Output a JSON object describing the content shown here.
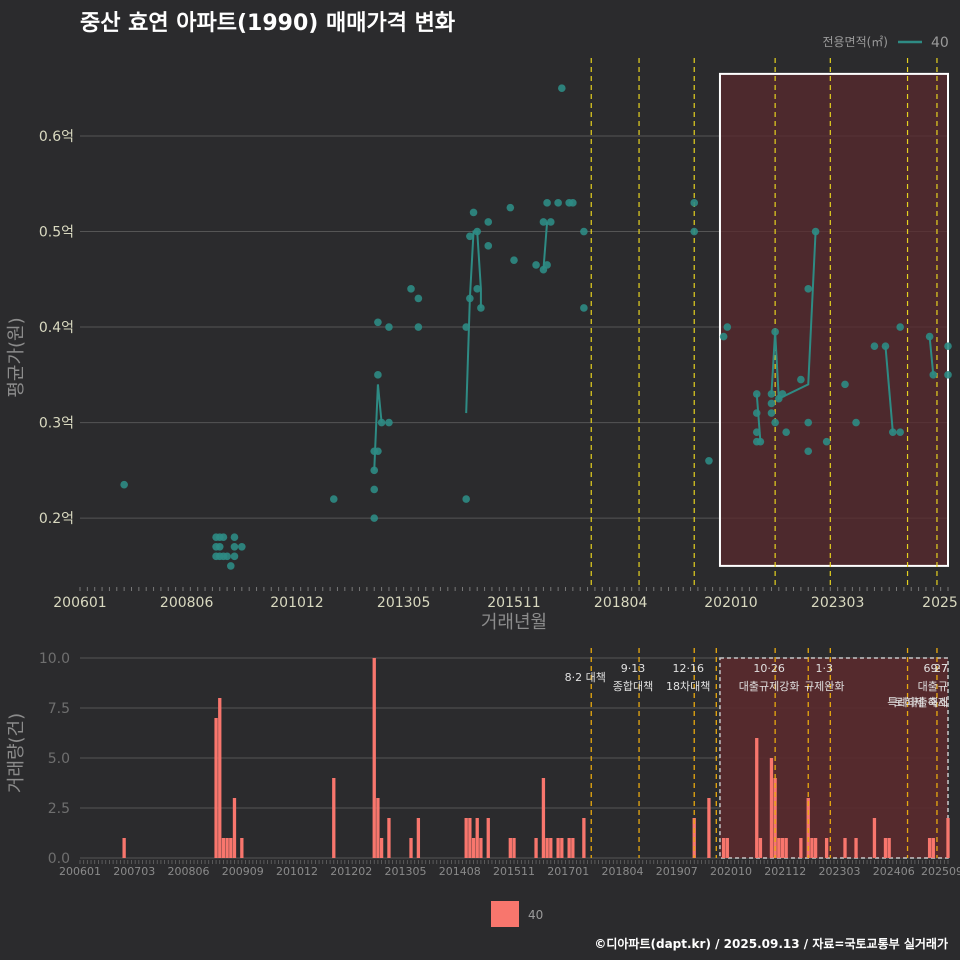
{
  "title": "중산 효연 아파트(1990) 매매가격 변화",
  "footer": "©디아파트(dapt.kr) / 2025.09.13 / 자료=국토교통부 실거래가",
  "colors": {
    "bg": "#2b2b2d",
    "line": "#2e8b84",
    "bar": "#f8766d",
    "grid": "#555555",
    "vline": "#e6d21f",
    "vline2": "#e8a90f",
    "shade": "#5a2a2e"
  },
  "chart_data": [
    {
      "type": "line",
      "name": "price",
      "xlabel": "거래년월",
      "ylabel": "평균가(원)",
      "legend_title": "전용면적(㎡)",
      "legend_position": "top-right",
      "x_range": [
        "2006-01",
        "2025-09"
      ],
      "ylim": [
        0.13,
        0.69
      ],
      "y_ticks": [
        0.2,
        0.3,
        0.4,
        0.5,
        0.6
      ],
      "y_tick_labels": [
        "0.2억",
        "0.3억",
        "0.4억",
        "0.5억",
        "0.6억"
      ],
      "x_ticks": [
        "2006-01",
        "2008-06",
        "2010-12",
        "2013-05",
        "2015-11",
        "2018-04",
        "2020-10",
        "2023-03",
        "2025-09"
      ],
      "x_tick_labels": [
        "200601",
        "200806",
        "201012",
        "201305",
        "201511",
        "201804",
        "202010",
        "202303",
        "2025"
      ],
      "vlines": [
        "2017-08",
        "2018-09",
        "2019-12",
        "2021-10",
        "2023-01",
        "2024-10",
        "2025-06"
      ],
      "highlight": [
        "2020-07",
        "2025-09"
      ],
      "series": [
        {
          "name": "40",
          "points": [
            [
              "2007-01",
              0.235
            ],
            [
              "2009-02",
              0.18
            ],
            [
              "2009-02",
              0.17
            ],
            [
              "2009-02",
              0.16
            ],
            [
              "2009-03",
              0.18
            ],
            [
              "2009-03",
              0.17
            ],
            [
              "2009-03",
              0.16
            ],
            [
              "2009-04",
              0.18
            ],
            [
              "2009-04",
              0.16
            ],
            [
              "2009-05",
              0.16
            ],
            [
              "2009-06",
              0.15
            ],
            [
              "2009-07",
              0.17
            ],
            [
              "2009-07",
              0.18
            ],
            [
              "2009-07",
              0.16
            ],
            [
              "2009-09",
              0.17
            ],
            [
              "2011-10",
              0.22
            ],
            [
              "2012-09",
              0.2
            ],
            [
              "2012-09",
              0.23
            ],
            [
              "2012-09",
              0.25
            ],
            [
              "2012-09",
              0.27
            ],
            [
              "2012-10",
              0.27
            ],
            [
              "2012-10",
              0.35
            ],
            [
              "2012-10",
              0.405
            ],
            [
              "2012-11",
              0.3
            ],
            [
              "2013-01",
              0.3
            ],
            [
              "2013-01",
              0.4
            ],
            [
              "2013-07",
              0.44
            ],
            [
              "2013-09",
              0.4
            ],
            [
              "2013-09",
              0.43
            ],
            [
              "2014-10",
              0.22
            ],
            [
              "2014-10",
              0.4
            ],
            [
              "2014-11",
              0.43
            ],
            [
              "2014-11",
              0.495
            ],
            [
              "2014-12",
              0.52
            ],
            [
              "2015-01",
              0.5
            ],
            [
              "2015-01",
              0.44
            ],
            [
              "2015-02",
              0.42
            ],
            [
              "2015-04",
              0.485
            ],
            [
              "2015-04",
              0.51
            ],
            [
              "2015-10",
              0.525
            ],
            [
              "2015-11",
              0.47
            ],
            [
              "2016-05",
              0.465
            ],
            [
              "2016-07",
              0.46
            ],
            [
              "2016-07",
              0.51
            ],
            [
              "2016-08",
              0.53
            ],
            [
              "2016-08",
              0.465
            ],
            [
              "2016-09",
              0.51
            ],
            [
              "2016-11",
              0.53
            ],
            [
              "2016-12",
              0.65
            ],
            [
              "2017-02",
              0.53
            ],
            [
              "2017-03",
              0.53
            ],
            [
              "2017-06",
              0.42
            ],
            [
              "2017-06",
              0.5
            ],
            [
              "2019-12",
              0.53
            ],
            [
              "2019-12",
              0.5
            ],
            [
              "2020-04",
              0.26
            ],
            [
              "2020-08",
              0.39
            ],
            [
              "2020-09",
              0.4
            ],
            [
              "2021-05",
              0.33
            ],
            [
              "2021-05",
              0.31
            ],
            [
              "2021-05",
              0.29
            ],
            [
              "2021-05",
              0.28
            ],
            [
              "2021-06",
              0.28
            ],
            [
              "2021-09",
              0.31
            ],
            [
              "2021-09",
              0.33
            ],
            [
              "2021-09",
              0.32
            ],
            [
              "2021-10",
              0.395
            ],
            [
              "2021-10",
              0.3
            ],
            [
              "2021-11",
              0.325
            ],
            [
              "2021-12",
              0.33
            ],
            [
              "2022-01",
              0.29
            ],
            [
              "2022-05",
              0.345
            ],
            [
              "2022-07",
              0.3
            ],
            [
              "2022-07",
              0.27
            ],
            [
              "2022-07",
              0.44
            ],
            [
              "2022-09",
              0.5
            ],
            [
              "2022-12",
              0.28
            ],
            [
              "2023-05",
              0.34
            ],
            [
              "2023-08",
              0.3
            ],
            [
              "2024-01",
              0.38
            ],
            [
              "2024-04",
              0.38
            ],
            [
              "2024-06",
              0.29
            ],
            [
              "2024-08",
              0.29
            ],
            [
              "2024-08",
              0.4
            ],
            [
              "2025-04",
              0.39
            ],
            [
              "2025-05",
              0.35
            ],
            [
              "2025-09",
              0.35
            ],
            [
              "2025-09",
              0.38
            ]
          ],
          "line": [
            [
              "2014-10",
              0.31
            ],
            [
              "2014-11",
              0.43
            ],
            [
              "2014-12",
              0.5
            ],
            [
              "2015-01",
              0.5
            ],
            [
              "2015-02",
              0.44
            ],
            [
              "2015-02",
              0.42
            ],
            [
              "2016-07",
              0.46
            ],
            [
              "2016-08",
              0.51
            ],
            [
              "2021-09",
              0.33
            ],
            [
              "2021-10",
              0.395
            ],
            [
              "2021-11",
              0.325
            ],
            [
              "2022-07",
              0.34
            ],
            [
              "2022-09",
              0.5
            ],
            [
              "2024-04",
              0.38
            ],
            [
              "2024-06",
              0.29
            ],
            [
              "2025-04",
              0.39
            ],
            [
              "2025-05",
              0.35
            ]
          ],
          "line2": [
            [
              "2012-09",
              0.25
            ],
            [
              "2012-10",
              0.34
            ],
            [
              "2012-11",
              0.3
            ]
          ],
          "line3": [
            [
              "2021-05",
              0.33
            ],
            [
              "2021-06",
              0.28
            ]
          ]
        }
      ]
    },
    {
      "type": "bar",
      "name": "volume",
      "ylabel": "거래량(건)",
      "ylim": [
        0,
        10.5
      ],
      "y_ticks": [
        0,
        2.5,
        5,
        7.5,
        10
      ],
      "y_tick_labels": [
        "0.0",
        "2.5",
        "5.0",
        "7.5",
        "10.0"
      ],
      "x_tick_labels": [
        "200601",
        "200703",
        "200806",
        "200909",
        "201012",
        "201202",
        "201305",
        "201408",
        "201511",
        "201701",
        "201804",
        "201907",
        "202010",
        "202112",
        "202303",
        "202406",
        "202509"
      ],
      "legend_label": "40",
      "vlines": [
        "2017-08",
        "2018-09",
        "2019-12",
        "2020-06",
        "2021-10",
        "2022-07",
        "2023-01",
        "2024-10",
        "2025-06"
      ],
      "annotations": [
        {
          "x": "2017-08",
          "date": "",
          "text": "8·2 대책"
        },
        {
          "x": "2018-09",
          "date": "9·13",
          "text": "종합대책"
        },
        {
          "x": "2019-12",
          "date": "12·16",
          "text": "18차대책"
        },
        {
          "x": "2021-10",
          "date": "10·26",
          "text": "대출규제강화"
        },
        {
          "x": "2023-01",
          "date": "1·3",
          "text": "규제완화"
        },
        {
          "x": "2024-10",
          "date": "9·7",
          "text": "특례대출축소"
        },
        {
          "x": "2025-06",
          "date": "6·27",
          "text": "대출규"
        },
        {
          "x": "2025-09",
          "date": "",
          "text": "토허제 해제"
        }
      ],
      "values": [
        [
          "2007-01",
          1
        ],
        [
          "2009-02",
          7
        ],
        [
          "2009-03",
          8
        ],
        [
          "2009-04",
          1
        ],
        [
          "2009-05",
          1
        ],
        [
          "2009-06",
          1
        ],
        [
          "2009-07",
          3
        ],
        [
          "2009-09",
          1
        ],
        [
          "2011-10",
          4
        ],
        [
          "2012-09",
          10
        ],
        [
          "2012-10",
          3
        ],
        [
          "2012-11",
          1
        ],
        [
          "2013-01",
          2
        ],
        [
          "2013-07",
          1
        ],
        [
          "2013-09",
          2
        ],
        [
          "2014-10",
          2
        ],
        [
          "2014-11",
          2
        ],
        [
          "2014-12",
          1
        ],
        [
          "2015-01",
          2
        ],
        [
          "2015-02",
          1
        ],
        [
          "2015-04",
          2
        ],
        [
          "2015-10",
          1
        ],
        [
          "2015-11",
          1
        ],
        [
          "2016-05",
          1
        ],
        [
          "2016-07",
          4
        ],
        [
          "2016-08",
          1
        ],
        [
          "2016-09",
          1
        ],
        [
          "2016-11",
          1
        ],
        [
          "2016-12",
          1
        ],
        [
          "2017-02",
          1
        ],
        [
          "2017-03",
          1
        ],
        [
          "2017-06",
          2
        ],
        [
          "2019-12",
          2
        ],
        [
          "2020-04",
          3
        ],
        [
          "2020-08",
          1
        ],
        [
          "2020-09",
          1
        ],
        [
          "2021-05",
          6
        ],
        [
          "2021-06",
          1
        ],
        [
          "2021-09",
          5
        ],
        [
          "2021-10",
          4
        ],
        [
          "2021-11",
          1
        ],
        [
          "2021-12",
          1
        ],
        [
          "2022-01",
          1
        ],
        [
          "2022-05",
          1
        ],
        [
          "2022-07",
          3
        ],
        [
          "2022-08",
          1
        ],
        [
          "2022-09",
          1
        ],
        [
          "2022-12",
          1
        ],
        [
          "2023-05",
          1
        ],
        [
          "2023-08",
          1
        ],
        [
          "2024-01",
          2
        ],
        [
          "2024-04",
          1
        ],
        [
          "2024-05",
          1
        ],
        [
          "2025-04",
          1
        ],
        [
          "2025-05",
          1
        ],
        [
          "2025-09",
          2
        ]
      ]
    }
  ]
}
